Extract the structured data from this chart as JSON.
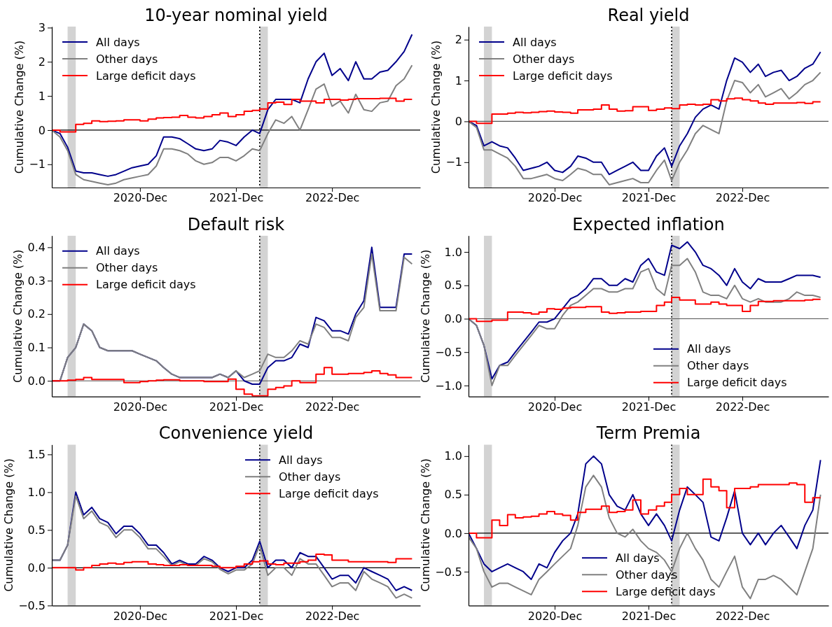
{
  "chart_data": [
    {
      "type": "line",
      "title": "10-year nominal yield",
      "ylabel": "Cumulative Change (%)",
      "legend": "top left",
      "xlim": [
        "2020-01-01",
        "2023-11-01"
      ],
      "xticks": [
        {
          "value": "2020-12-01",
          "label": "2020-Dec"
        },
        {
          "value": "2021-12-01",
          "label": "2021-Dec"
        },
        {
          "value": "2022-12-01",
          "label": "2022-Dec"
        }
      ],
      "ylim": [
        -1.68,
        3.03
      ],
      "yticks": [
        {
          "value": -1,
          "label": "−1"
        },
        0,
        1,
        2,
        3
      ],
      "x": [
        "2020-01-01",
        "2020-02-01",
        "2020-03-01",
        "2020-04-01",
        "2020-05-01",
        "2020-06-01",
        "2020-07-01",
        "2020-08-01",
        "2020-09-01",
        "2020-10-01",
        "2020-11-01",
        "2020-12-01",
        "2021-01-01",
        "2021-02-01",
        "2021-03-01",
        "2021-04-01",
        "2021-05-01",
        "2021-06-01",
        "2021-07-01",
        "2021-08-01",
        "2021-09-01",
        "2021-10-01",
        "2021-11-01",
        "2021-12-01",
        "2022-01-01",
        "2022-02-01",
        "2022-03-01",
        "2022-04-01",
        "2022-05-01",
        "2022-06-01",
        "2022-07-01",
        "2022-08-01",
        "2022-09-01",
        "2022-10-01",
        "2022-11-01",
        "2022-12-01",
        "2023-01-01",
        "2023-02-01",
        "2023-03-01",
        "2023-04-01",
        "2023-05-01",
        "2023-06-01",
        "2023-07-01",
        "2023-08-01",
        "2023-09-01",
        "2023-10-01"
      ],
      "bands": [
        {
          "axis": "x",
          "from": "2020-03-01",
          "to": "2020-04-01",
          "color": "#d3d3d3"
        },
        {
          "axis": "x",
          "from": "2022-03-01",
          "to": "2022-04-01",
          "color": "#d3d3d3"
        }
      ],
      "ref_lines": [
        {
          "axis": "x",
          "value": "2022-03-01",
          "color": "#000000",
          "line_style": "dotted"
        },
        {
          "axis": "y",
          "value": 0,
          "color": "#000000",
          "line_style": "solid"
        }
      ],
      "series": [
        {
          "name": "All days",
          "color": "#00008b",
          "values": [
            0,
            -0.1,
            -0.5,
            -1.2,
            -1.25,
            -1.25,
            -1.3,
            -1.35,
            -1.3,
            -1.2,
            -1.1,
            -1.05,
            -1.0,
            -0.75,
            -0.2,
            -0.2,
            -0.25,
            -0.4,
            -0.55,
            -0.6,
            -0.55,
            -0.3,
            -0.35,
            -0.45,
            -0.2,
            0.0,
            -0.1,
            0.6,
            0.9,
            0.9,
            0.9,
            0.8,
            1.5,
            2.0,
            2.25,
            1.6,
            1.8,
            1.45,
            2.0,
            1.5,
            1.5,
            1.7,
            1.75,
            2.0,
            2.3,
            2.8
          ]
        },
        {
          "name": "Other days",
          "color": "#808080",
          "values": [
            0,
            -0.2,
            -0.6,
            -1.3,
            -1.45,
            -1.5,
            -1.55,
            -1.6,
            -1.55,
            -1.45,
            -1.4,
            -1.35,
            -1.3,
            -1.05,
            -0.55,
            -0.55,
            -0.6,
            -0.7,
            -0.9,
            -1.0,
            -0.95,
            -0.8,
            -0.8,
            -0.9,
            -0.75,
            -0.55,
            -0.6,
            -0.1,
            0.3,
            0.2,
            0.4,
            0.0,
            0.6,
            1.2,
            1.35,
            0.7,
            0.85,
            0.5,
            1.05,
            0.6,
            0.55,
            0.8,
            0.85,
            1.3,
            1.5,
            1.9
          ]
        },
        {
          "name": "Large deficit days",
          "color": "#ff0000",
          "type": "step",
          "values": [
            0,
            -0.05,
            -0.05,
            0.17,
            0.2,
            0.27,
            0.25,
            0.26,
            0.27,
            0.3,
            0.3,
            0.27,
            0.32,
            0.36,
            0.37,
            0.38,
            0.43,
            0.38,
            0.36,
            0.4,
            0.45,
            0.5,
            0.4,
            0.45,
            0.55,
            0.58,
            0.62,
            0.8,
            0.82,
            0.75,
            0.9,
            0.85,
            0.85,
            0.8,
            0.9,
            0.9,
            0.88,
            0.9,
            0.92,
            0.92,
            0.92,
            0.93,
            0.93,
            0.85,
            0.9,
            0.9
          ]
        }
      ]
    },
    {
      "type": "line",
      "title": "Real yield",
      "ylabel": "Cumulative Change (%)",
      "legend": "top left",
      "xlim": [
        "2020-01-01",
        "2023-11-01"
      ],
      "xticks": [
        {
          "value": "2020-12-01",
          "label": "2020-Dec"
        },
        {
          "value": "2021-12-01",
          "label": "2021-Dec"
        },
        {
          "value": "2022-12-01",
          "label": "2022-Dec"
        }
      ],
      "ylim": [
        -1.62,
        2.32
      ],
      "yticks": [
        {
          "value": -1,
          "label": "−1"
        },
        0,
        1,
        2
      ],
      "x": [
        "2020-01-01",
        "2020-02-01",
        "2020-03-01",
        "2020-04-01",
        "2020-05-01",
        "2020-06-01",
        "2020-07-01",
        "2020-08-01",
        "2020-09-01",
        "2020-10-01",
        "2020-11-01",
        "2020-12-01",
        "2021-01-01",
        "2021-02-01",
        "2021-03-01",
        "2021-04-01",
        "2021-05-01",
        "2021-06-01",
        "2021-07-01",
        "2021-08-01",
        "2021-09-01",
        "2021-10-01",
        "2021-11-01",
        "2021-12-01",
        "2022-01-01",
        "2022-02-01",
        "2022-03-01",
        "2022-04-01",
        "2022-05-01",
        "2022-06-01",
        "2022-07-01",
        "2022-08-01",
        "2022-09-01",
        "2022-10-01",
        "2022-11-01",
        "2022-12-01",
        "2023-01-01",
        "2023-02-01",
        "2023-03-01",
        "2023-04-01",
        "2023-05-01",
        "2023-06-01",
        "2023-07-01",
        "2023-08-01",
        "2023-09-01",
        "2023-10-01"
      ],
      "bands": [
        {
          "axis": "x",
          "from": "2020-03-01",
          "to": "2020-04-01",
          "color": "#d3d3d3"
        },
        {
          "axis": "x",
          "from": "2022-03-01",
          "to": "2022-04-01",
          "color": "#d3d3d3"
        }
      ],
      "ref_lines": [
        {
          "axis": "x",
          "value": "2022-03-01",
          "color": "#000000",
          "line_style": "dotted"
        },
        {
          "axis": "y",
          "value": 0,
          "color": "#555555",
          "line_style": "solid"
        }
      ],
      "series": [
        {
          "name": "All days",
          "color": "#00008b",
          "values": [
            0,
            -0.1,
            -0.6,
            -0.5,
            -0.6,
            -0.65,
            -0.9,
            -1.2,
            -1.15,
            -1.1,
            -1.0,
            -1.2,
            -1.25,
            -1.1,
            -0.85,
            -0.9,
            -1.0,
            -1.0,
            -1.3,
            -1.2,
            -1.1,
            -1.0,
            -1.2,
            -1.2,
            -0.85,
            -0.65,
            -1.1,
            -0.6,
            -0.3,
            0.1,
            0.3,
            0.4,
            0.3,
            1.0,
            1.55,
            1.45,
            1.2,
            1.4,
            1.1,
            1.2,
            1.25,
            1.0,
            1.1,
            1.3,
            1.4,
            1.7
          ]
        },
        {
          "name": "Other days",
          "color": "#808080",
          "values": [
            0,
            -0.15,
            -0.7,
            -0.7,
            -0.8,
            -0.9,
            -1.1,
            -1.4,
            -1.4,
            -1.35,
            -1.3,
            -1.4,
            -1.45,
            -1.3,
            -1.15,
            -1.2,
            -1.3,
            -1.3,
            -1.55,
            -1.5,
            -1.45,
            -1.4,
            -1.5,
            -1.5,
            -1.2,
            -0.95,
            -1.45,
            -1.0,
            -0.7,
            -0.3,
            -0.1,
            -0.2,
            -0.3,
            0.5,
            1.0,
            0.95,
            0.7,
            0.9,
            0.6,
            0.7,
            0.8,
            0.55,
            0.7,
            0.9,
            1.0,
            1.2
          ]
        },
        {
          "name": "Large deficit days",
          "color": "#ff0000",
          "type": "step",
          "values": [
            0,
            -0.05,
            -0.05,
            0.18,
            0.18,
            0.2,
            0.22,
            0.21,
            0.22,
            0.24,
            0.25,
            0.23,
            0.22,
            0.2,
            0.28,
            0.28,
            0.3,
            0.4,
            0.3,
            0.25,
            0.26,
            0.36,
            0.36,
            0.27,
            0.3,
            0.33,
            0.31,
            0.4,
            0.42,
            0.4,
            0.42,
            0.53,
            0.5,
            0.55,
            0.57,
            0.53,
            0.5,
            0.45,
            0.42,
            0.45,
            0.45,
            0.45,
            0.46,
            0.44,
            0.48,
            0.48
          ]
        }
      ]
    },
    {
      "type": "line",
      "title": "Default risk",
      "ylabel": "Cumulative Change (%)",
      "legend": "top left",
      "xlim": [
        "2020-01-01",
        "2023-11-01"
      ],
      "xticks": [
        {
          "value": "2020-12-01",
          "label": "2020-Dec"
        },
        {
          "value": "2021-12-01",
          "label": "2021-Dec"
        },
        {
          "value": "2022-12-01",
          "label": "2022-Dec"
        }
      ],
      "ylim": [
        -0.047,
        0.435
      ],
      "yticks": [
        {
          "value": 0,
          "label": "0.0"
        },
        0.1,
        0.2,
        0.3,
        0.4
      ],
      "x": [
        "2020-01-01",
        "2020-02-01",
        "2020-03-01",
        "2020-04-01",
        "2020-05-01",
        "2020-06-01",
        "2020-07-01",
        "2020-08-01",
        "2020-09-01",
        "2020-10-01",
        "2020-11-01",
        "2020-12-01",
        "2021-01-01",
        "2021-02-01",
        "2021-03-01",
        "2021-04-01",
        "2021-05-01",
        "2021-06-01",
        "2021-07-01",
        "2021-08-01",
        "2021-09-01",
        "2021-10-01",
        "2021-11-01",
        "2021-12-01",
        "2022-01-01",
        "2022-02-01",
        "2022-03-01",
        "2022-04-01",
        "2022-05-01",
        "2022-06-01",
        "2022-07-01",
        "2022-08-01",
        "2022-09-01",
        "2022-10-01",
        "2022-11-01",
        "2022-12-01",
        "2023-01-01",
        "2023-02-01",
        "2023-03-01",
        "2023-04-01",
        "2023-05-01",
        "2023-06-01",
        "2023-07-01",
        "2023-08-01",
        "2023-09-01",
        "2023-10-01"
      ],
      "bands": [
        {
          "axis": "x",
          "from": "2020-03-01",
          "to": "2020-04-01",
          "color": "#d3d3d3"
        },
        {
          "axis": "x",
          "from": "2022-03-01",
          "to": "2022-04-01",
          "color": "#d3d3d3"
        }
      ],
      "ref_lines": [
        {
          "axis": "x",
          "value": "2022-03-01",
          "color": "#000000",
          "line_style": "dotted"
        },
        {
          "axis": "y",
          "value": 0,
          "color": "#555555",
          "line_style": "solid"
        }
      ],
      "series": [
        {
          "name": "All days",
          "color": "#00008b",
          "values": [
            0,
            0,
            0.07,
            0.1,
            0.17,
            0.15,
            0.1,
            0.09,
            0.09,
            0.09,
            0.09,
            0.08,
            0.07,
            0.06,
            0.04,
            0.02,
            0.01,
            0.01,
            0.01,
            0.01,
            0.01,
            0.02,
            0.01,
            0.03,
            0.0,
            -0.01,
            -0.01,
            0.04,
            0.06,
            0.06,
            0.07,
            0.11,
            0.1,
            0.19,
            0.18,
            0.15,
            0.15,
            0.14,
            0.2,
            0.24,
            0.4,
            0.22,
            0.22,
            0.22,
            0.38,
            0.38
          ]
        },
        {
          "name": "Other days",
          "color": "#808080",
          "values": [
            0,
            0,
            0.07,
            0.1,
            0.17,
            0.15,
            0.1,
            0.09,
            0.09,
            0.09,
            0.09,
            0.08,
            0.07,
            0.06,
            0.04,
            0.02,
            0.01,
            0.01,
            0.01,
            0.01,
            0.01,
            0.02,
            0.01,
            0.03,
            0.01,
            0.02,
            0.03,
            0.08,
            0.07,
            0.07,
            0.09,
            0.12,
            0.11,
            0.17,
            0.16,
            0.13,
            0.13,
            0.12,
            0.19,
            0.22,
            0.38,
            0.21,
            0.21,
            0.21,
            0.37,
            0.35
          ]
        },
        {
          "name": "Large deficit days",
          "color": "#ff0000",
          "type": "step",
          "values": [
            0,
            0,
            0.002,
            0.004,
            0.01,
            0.004,
            0.004,
            0.004,
            0.004,
            -0.005,
            -0.005,
            -0.002,
            0.0,
            0.002,
            0.003,
            0.003,
            0.0,
            0.0,
            0.0,
            -0.002,
            -0.002,
            -0.002,
            0.005,
            -0.025,
            -0.04,
            -0.045,
            -0.045,
            -0.025,
            -0.02,
            -0.015,
            0.0,
            -0.005,
            -0.005,
            0.02,
            0.04,
            0.02,
            0.02,
            0.022,
            0.022,
            0.025,
            0.03,
            0.022,
            0.018,
            0.01,
            0.01,
            0.01
          ]
        }
      ]
    },
    {
      "type": "line",
      "title": "Expected inflation",
      "ylabel": "Cumulative Change (%)",
      "legend": "bottom right",
      "xlim": [
        "2020-01-01",
        "2023-11-01"
      ],
      "xticks": [
        {
          "value": "2020-12-01",
          "label": "2020-Dec"
        },
        {
          "value": "2021-12-01",
          "label": "2021-Dec"
        },
        {
          "value": "2022-12-01",
          "label": "2022-Dec"
        }
      ],
      "ylim": [
        -1.165,
        1.245
      ],
      "yticks": [
        {
          "value": -1,
          "label": "−1.0"
        },
        {
          "value": -0.5,
          "label": "−0.5"
        },
        {
          "value": 0,
          "label": "0.0"
        },
        0.5,
        {
          "value": 1,
          "label": "1.0"
        }
      ],
      "x": [
        "2020-01-01",
        "2020-02-01",
        "2020-03-01",
        "2020-04-01",
        "2020-05-01",
        "2020-06-01",
        "2020-07-01",
        "2020-08-01",
        "2020-09-01",
        "2020-10-01",
        "2020-11-01",
        "2020-12-01",
        "2021-01-01",
        "2021-02-01",
        "2021-03-01",
        "2021-04-01",
        "2021-05-01",
        "2021-06-01",
        "2021-07-01",
        "2021-08-01",
        "2021-09-01",
        "2021-10-01",
        "2021-11-01",
        "2021-12-01",
        "2022-01-01",
        "2022-02-01",
        "2022-03-01",
        "2022-04-01",
        "2022-05-01",
        "2022-06-01",
        "2022-07-01",
        "2022-08-01",
        "2022-09-01",
        "2022-10-01",
        "2022-11-01",
        "2022-12-01",
        "2023-01-01",
        "2023-02-01",
        "2023-03-01",
        "2023-04-01",
        "2023-05-01",
        "2023-06-01",
        "2023-07-01",
        "2023-08-01",
        "2023-09-01",
        "2023-10-01"
      ],
      "bands": [
        {
          "axis": "x",
          "from": "2020-03-01",
          "to": "2020-04-01",
          "color": "#d3d3d3"
        },
        {
          "axis": "x",
          "from": "2022-03-01",
          "to": "2022-04-01",
          "color": "#d3d3d3"
        }
      ],
      "ref_lines": [
        {
          "axis": "x",
          "value": "2022-03-01",
          "color": "#000000",
          "line_style": "dotted"
        },
        {
          "axis": "y",
          "value": 0,
          "color": "#555555",
          "line_style": "solid"
        }
      ],
      "series": [
        {
          "name": "All days",
          "color": "#00008b",
          "values": [
            0,
            -0.1,
            -0.4,
            -0.9,
            -0.7,
            -0.65,
            -0.5,
            -0.35,
            -0.2,
            -0.05,
            -0.05,
            0.0,
            0.15,
            0.3,
            0.35,
            0.45,
            0.6,
            0.6,
            0.5,
            0.5,
            0.6,
            0.55,
            0.8,
            0.9,
            0.7,
            0.65,
            1.1,
            1.05,
            1.15,
            1.0,
            0.8,
            0.75,
            0.65,
            0.5,
            0.75,
            0.55,
            0.45,
            0.6,
            0.55,
            0.55,
            0.55,
            0.6,
            0.65,
            0.65,
            0.65,
            0.62
          ]
        },
        {
          "name": "Other days",
          "color": "#808080",
          "values": [
            0,
            -0.1,
            -0.4,
            -1.0,
            -0.7,
            -0.7,
            -0.55,
            -0.4,
            -0.25,
            -0.1,
            -0.15,
            -0.15,
            0.05,
            0.2,
            0.25,
            0.35,
            0.45,
            0.45,
            0.4,
            0.4,
            0.45,
            0.45,
            0.7,
            0.75,
            0.45,
            0.35,
            0.8,
            0.8,
            0.9,
            0.7,
            0.4,
            0.35,
            0.35,
            0.3,
            0.5,
            0.3,
            0.25,
            0.3,
            0.25,
            0.25,
            0.25,
            0.3,
            0.4,
            0.35,
            0.35,
            0.32
          ]
        },
        {
          "name": "Large deficit days",
          "color": "#ff0000",
          "type": "step",
          "values": [
            0,
            -0.04,
            -0.04,
            -0.02,
            -0.02,
            0.1,
            0.1,
            0.09,
            0.07,
            0.1,
            0.15,
            0.14,
            0.16,
            0.17,
            0.17,
            0.18,
            0.18,
            0.1,
            0.08,
            0.09,
            0.1,
            0.1,
            0.11,
            0.11,
            0.2,
            0.25,
            0.32,
            0.28,
            0.28,
            0.22,
            0.22,
            0.25,
            0.22,
            0.2,
            0.2,
            0.11,
            0.2,
            0.26,
            0.26,
            0.27,
            0.27,
            0.27,
            0.27,
            0.28,
            0.29,
            0.29
          ]
        }
      ]
    },
    {
      "type": "line",
      "title": "Convenience yield",
      "ylabel": "Cumulative Change (%)",
      "legend": "top right",
      "xlim": [
        "2020-01-01",
        "2023-11-01"
      ],
      "xticks": [
        {
          "value": "2020-12-01",
          "label": "2020-Dec"
        },
        {
          "value": "2021-12-01",
          "label": "2021-Dec"
        },
        {
          "value": "2022-12-01",
          "label": "2022-Dec"
        }
      ],
      "ylim": [
        -0.5,
        1.63
      ],
      "yticks": [
        {
          "value": -0.5,
          "label": "−0.5"
        },
        {
          "value": 0,
          "label": "0.0"
        },
        0.5,
        {
          "value": 1,
          "label": "1.0"
        },
        1.5
      ],
      "x": [
        "2020-01-01",
        "2020-02-01",
        "2020-03-01",
        "2020-04-01",
        "2020-05-01",
        "2020-06-01",
        "2020-07-01",
        "2020-08-01",
        "2020-09-01",
        "2020-10-01",
        "2020-11-01",
        "2020-12-01",
        "2021-01-01",
        "2021-02-01",
        "2021-03-01",
        "2021-04-01",
        "2021-05-01",
        "2021-06-01",
        "2021-07-01",
        "2021-08-01",
        "2021-09-01",
        "2021-10-01",
        "2021-11-01",
        "2021-12-01",
        "2022-01-01",
        "2022-02-01",
        "2022-03-01",
        "2022-04-01",
        "2022-05-01",
        "2022-06-01",
        "2022-07-01",
        "2022-08-01",
        "2022-09-01",
        "2022-10-01",
        "2022-11-01",
        "2022-12-01",
        "2023-01-01",
        "2023-02-01",
        "2023-03-01",
        "2023-04-01",
        "2023-05-01",
        "2023-06-01",
        "2023-07-01",
        "2023-08-01",
        "2023-09-01",
        "2023-10-01"
      ],
      "bands": [
        {
          "axis": "x",
          "from": "2020-03-01",
          "to": "2020-04-01",
          "color": "#d3d3d3"
        },
        {
          "axis": "x",
          "from": "2022-03-01",
          "to": "2022-04-01",
          "color": "#d3d3d3"
        }
      ],
      "ref_lines": [
        {
          "axis": "x",
          "value": "2022-03-01",
          "color": "#000000",
          "line_style": "dotted"
        },
        {
          "axis": "y",
          "value": 0,
          "color": "#000000",
          "line_style": "solid"
        }
      ],
      "series": [
        {
          "name": "All days",
          "color": "#00008b",
          "values": [
            0.1,
            0.1,
            0.3,
            1.0,
            0.7,
            0.8,
            0.65,
            0.6,
            0.45,
            0.55,
            0.55,
            0.45,
            0.3,
            0.3,
            0.2,
            0.05,
            0.1,
            0.05,
            0.05,
            0.15,
            0.1,
            0.0,
            -0.05,
            0.0,
            0.0,
            0.1,
            0.35,
            0.0,
            0.1,
            0.1,
            0.0,
            0.2,
            0.15,
            0.15,
            0.0,
            -0.15,
            -0.1,
            -0.1,
            -0.2,
            0.0,
            -0.05,
            -0.1,
            -0.15,
            -0.3,
            -0.25,
            -0.3
          ]
        },
        {
          "name": "Other days",
          "color": "#808080",
          "values": [
            0.1,
            0.1,
            0.3,
            0.95,
            0.65,
            0.75,
            0.6,
            0.55,
            0.4,
            0.5,
            0.5,
            0.4,
            0.25,
            0.25,
            0.15,
            0.03,
            0.08,
            0.03,
            0.03,
            0.12,
            0.08,
            -0.02,
            -0.08,
            -0.03,
            -0.03,
            0.05,
            0.3,
            -0.1,
            0.0,
            0.0,
            -0.1,
            0.12,
            0.05,
            0.05,
            -0.1,
            -0.25,
            -0.2,
            -0.2,
            -0.3,
            -0.05,
            -0.15,
            -0.2,
            -0.25,
            -0.4,
            -0.35,
            -0.4
          ]
        },
        {
          "name": "Large deficit days",
          "color": "#ff0000",
          "type": "step",
          "values": [
            0,
            0,
            0,
            -0.03,
            0.0,
            0.03,
            0.05,
            0.06,
            0.05,
            0.07,
            0.08,
            0.08,
            0.05,
            0.04,
            0.03,
            0.03,
            0.04,
            0.03,
            0.03,
            0.03,
            0.02,
            0.0,
            0.0,
            0.02,
            0.05,
            0.08,
            0.09,
            0.05,
            0.04,
            0.06,
            0.06,
            0.08,
            0.1,
            0.18,
            0.17,
            0.1,
            0.1,
            0.08,
            0.08,
            0.08,
            0.08,
            0.08,
            0.07,
            0.12,
            0.12,
            0.12
          ]
        }
      ]
    },
    {
      "type": "line",
      "title": "Term Premia",
      "ylabel": "Cumulative Change (%)",
      "legend": "bottom",
      "xlim": [
        "2020-01-01",
        "2023-11-01"
      ],
      "xticks": [
        {
          "value": "2020-12-01",
          "label": "2020-Dec"
        },
        {
          "value": "2021-12-01",
          "label": "2021-Dec"
        },
        {
          "value": "2022-12-01",
          "label": "2022-Dec"
        }
      ],
      "ylim": [
        -0.94,
        1.15
      ],
      "yticks": [
        {
          "value": -0.5,
          "label": "−0.5"
        },
        {
          "value": 0,
          "label": "0.0"
        },
        0.5,
        {
          "value": 1,
          "label": "1.0"
        }
      ],
      "x": [
        "2020-01-01",
        "2020-02-01",
        "2020-03-01",
        "2020-04-01",
        "2020-05-01",
        "2020-06-01",
        "2020-07-01",
        "2020-08-01",
        "2020-09-01",
        "2020-10-01",
        "2020-11-01",
        "2020-12-01",
        "2021-01-01",
        "2021-02-01",
        "2021-03-01",
        "2021-04-01",
        "2021-05-01",
        "2021-06-01",
        "2021-07-01",
        "2021-08-01",
        "2021-09-01",
        "2021-10-01",
        "2021-11-01",
        "2021-12-01",
        "2022-01-01",
        "2022-02-01",
        "2022-03-01",
        "2022-04-01",
        "2022-05-01",
        "2022-06-01",
        "2022-07-01",
        "2022-08-01",
        "2022-09-01",
        "2022-10-01",
        "2022-11-01",
        "2022-12-01",
        "2023-01-01",
        "2023-02-01",
        "2023-03-01",
        "2023-04-01",
        "2023-05-01",
        "2023-06-01",
        "2023-07-01",
        "2023-08-01",
        "2023-09-01",
        "2023-10-01"
      ],
      "bands": [
        {
          "axis": "x",
          "from": "2020-03-01",
          "to": "2020-04-01",
          "color": "#d3d3d3"
        },
        {
          "axis": "x",
          "from": "2022-03-01",
          "to": "2022-04-01",
          "color": "#d3d3d3"
        }
      ],
      "ref_lines": [
        {
          "axis": "x",
          "value": "2022-03-01",
          "color": "#000000",
          "line_style": "dotted"
        },
        {
          "axis": "y",
          "value": 0,
          "color": "#000000",
          "line_style": "solid"
        }
      ],
      "series": [
        {
          "name": "All days",
          "color": "#00008b",
          "values": [
            0,
            -0.2,
            -0.4,
            -0.5,
            -0.45,
            -0.4,
            -0.45,
            -0.5,
            -0.6,
            -0.4,
            -0.45,
            -0.25,
            -0.1,
            0.0,
            0.25,
            0.9,
            1.0,
            0.9,
            0.5,
            0.35,
            0.3,
            0.5,
            0.25,
            0.1,
            0.25,
            0.1,
            -0.1,
            0.3,
            0.6,
            0.5,
            0.4,
            -0.05,
            -0.1,
            0.2,
            0.55,
            0.0,
            -0.15,
            0.0,
            -0.15,
            0.0,
            0.1,
            -0.05,
            -0.2,
            0.1,
            0.3,
            0.95
          ]
        },
        {
          "name": "Other days",
          "color": "#808080",
          "values": [
            -0.05,
            -0.2,
            -0.5,
            -0.7,
            -0.65,
            -0.65,
            -0.7,
            -0.75,
            -0.8,
            -0.6,
            -0.5,
            -0.4,
            -0.3,
            -0.2,
            0.1,
            0.6,
            0.75,
            0.6,
            0.2,
            0.0,
            -0.05,
            0.05,
            -0.1,
            -0.2,
            -0.25,
            -0.35,
            -0.5,
            -0.2,
            0.0,
            -0.2,
            -0.35,
            -0.6,
            -0.7,
            -0.5,
            -0.3,
            -0.7,
            -0.85,
            -0.6,
            -0.6,
            -0.55,
            -0.6,
            -0.7,
            -0.8,
            -0.5,
            -0.2,
            0.5
          ]
        },
        {
          "name": "Large deficit days",
          "color": "#ff0000",
          "type": "step",
          "values": [
            0,
            -0.06,
            -0.06,
            0.17,
            0.1,
            0.24,
            0.2,
            0.21,
            0.22,
            0.25,
            0.28,
            0.25,
            0.23,
            0.17,
            0.27,
            0.31,
            0.31,
            0.35,
            0.27,
            0.28,
            0.3,
            0.43,
            0.25,
            0.3,
            0.35,
            0.4,
            0.5,
            0.58,
            0.5,
            0.5,
            0.7,
            0.6,
            0.55,
            0.33,
            0.58,
            0.58,
            0.6,
            0.63,
            0.63,
            0.63,
            0.63,
            0.65,
            0.63,
            0.4,
            0.46,
            0.46
          ]
        }
      ]
    }
  ]
}
